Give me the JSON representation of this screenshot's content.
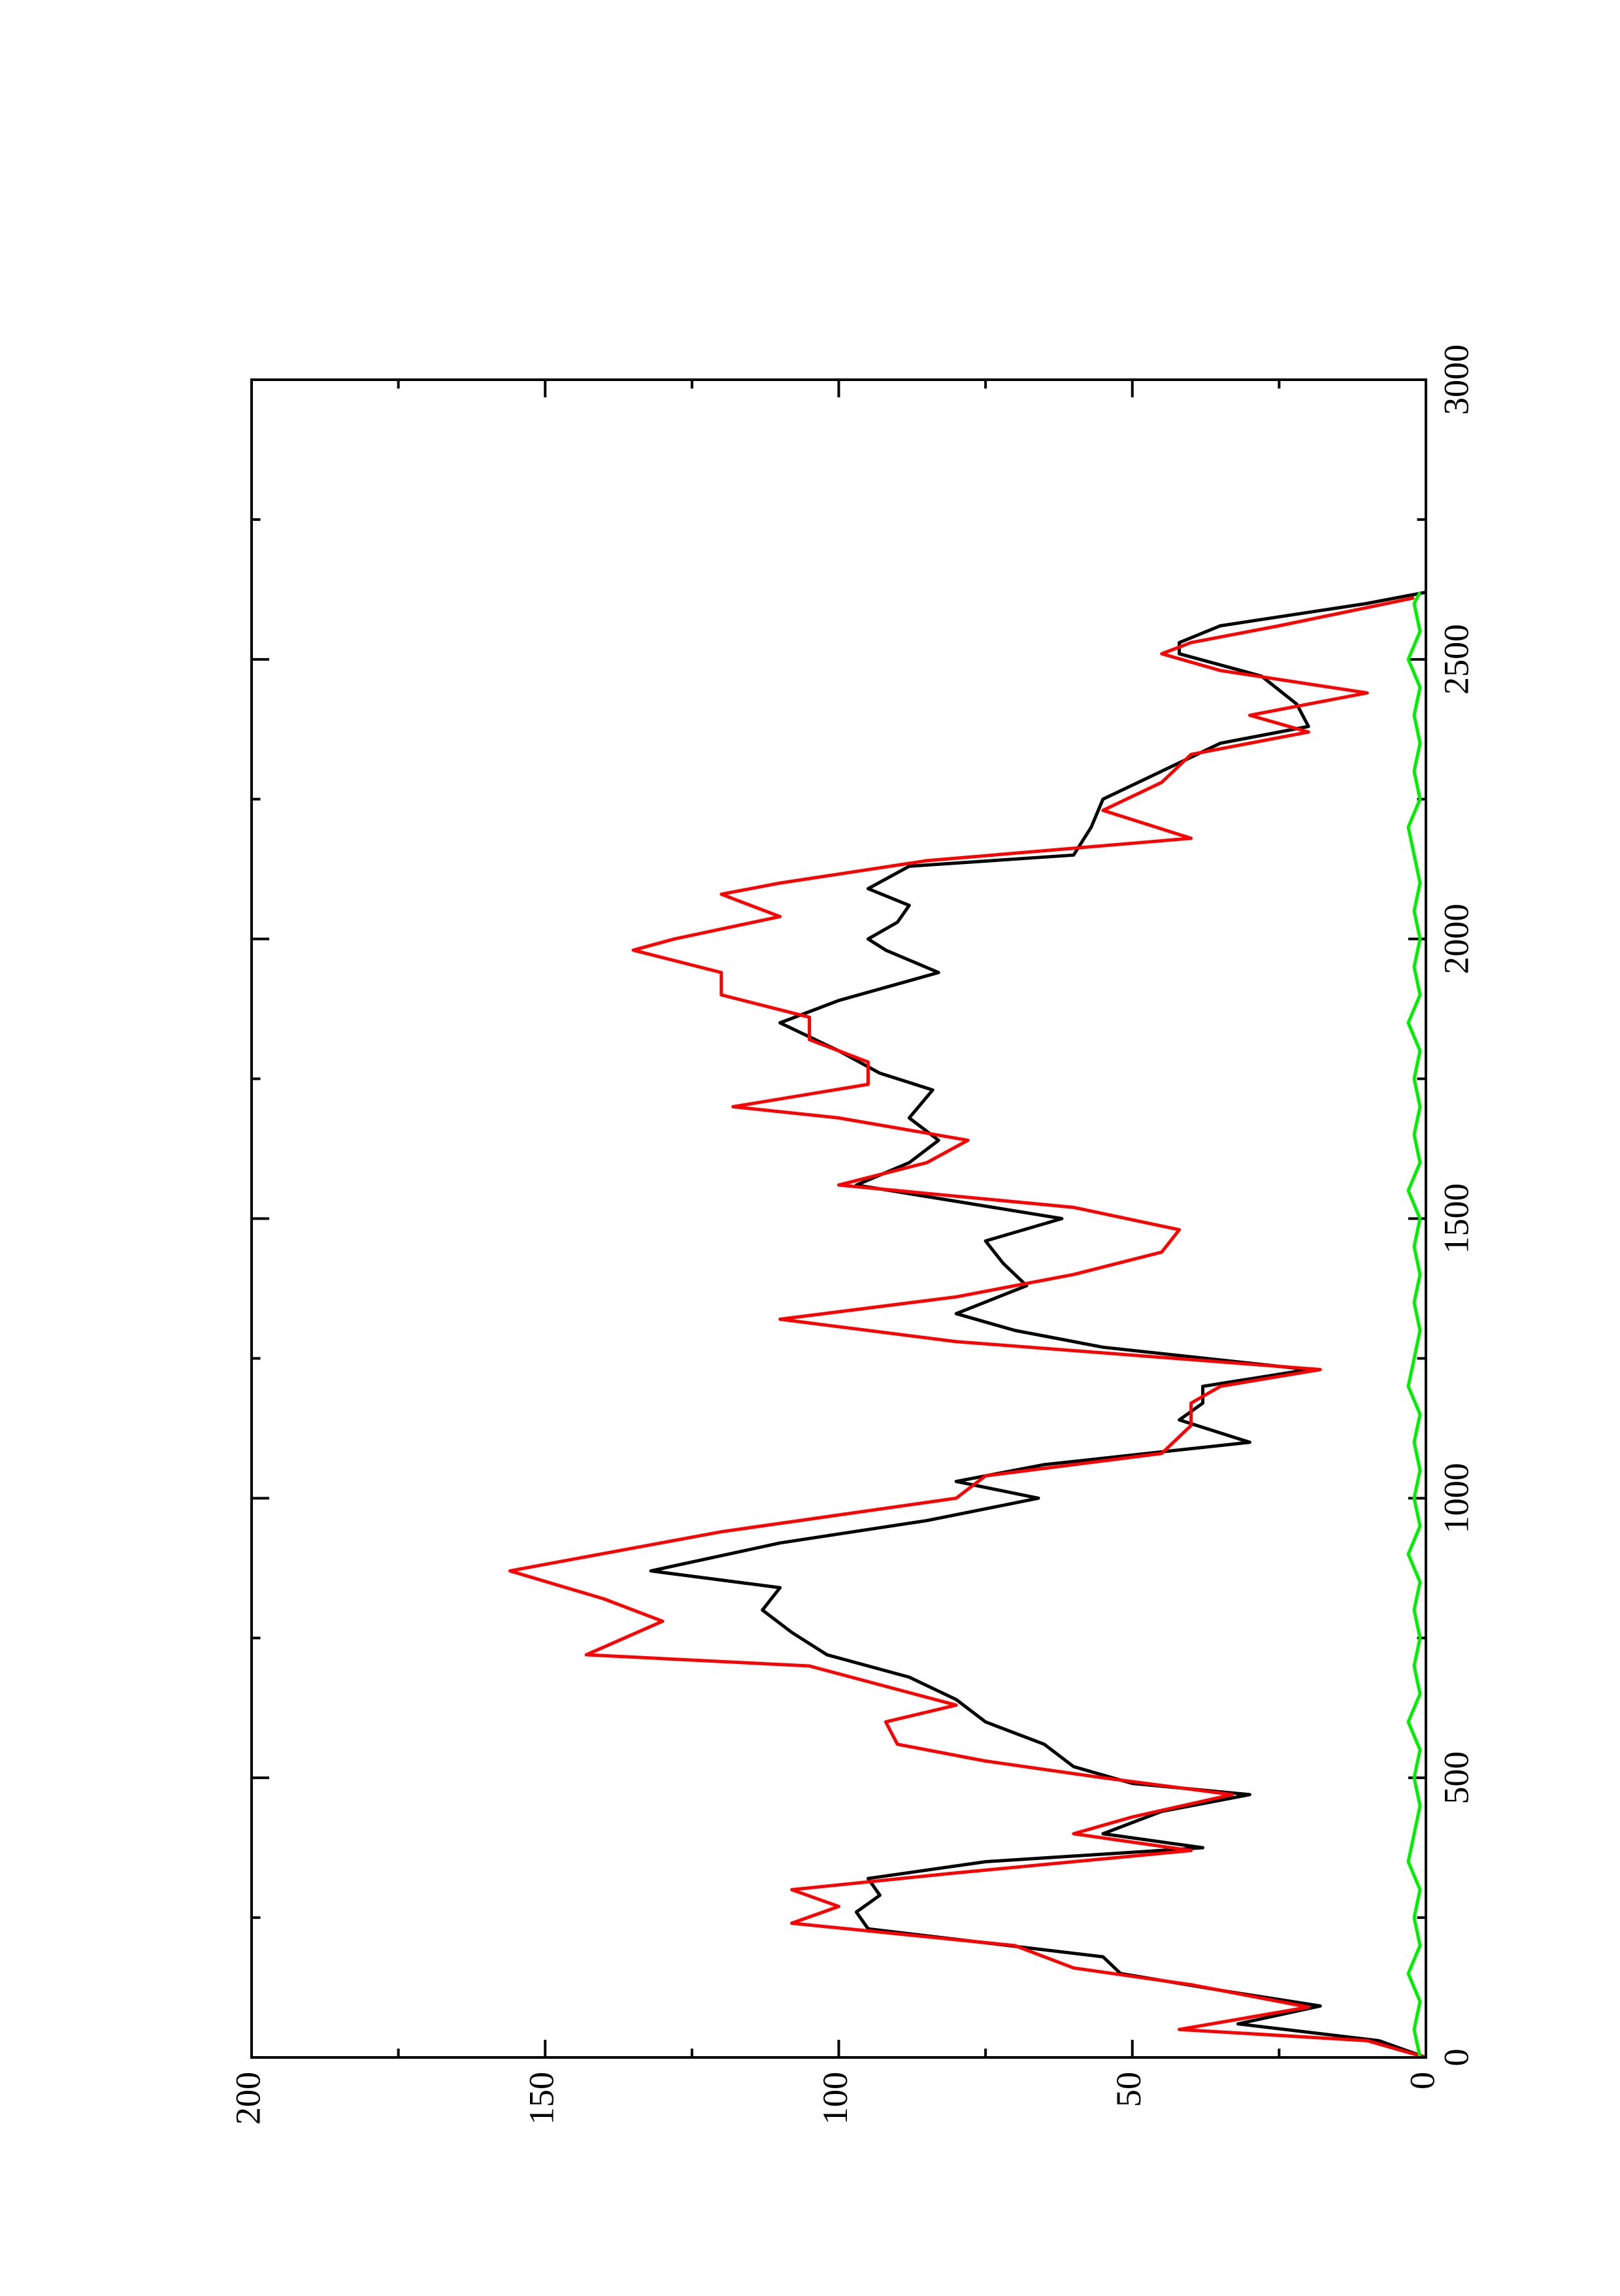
{
  "chart_data": {
    "type": "line",
    "xlim": [
      0,
      3000
    ],
    "xticks": [
      0,
      500,
      1000,
      1500,
      2000,
      2500,
      3000
    ],
    "xminor_ticks": [
      250,
      750,
      1250,
      1750,
      2250,
      2750
    ],
    "ylim": [
      0,
      200
    ],
    "yticks": [
      0,
      50,
      100,
      150,
      200
    ],
    "yminor_ticks": [
      25,
      75,
      125,
      175
    ],
    "series": [
      {
        "color": "#000000",
        "x": [
          0,
          30,
          60,
          92,
          120,
          150,
          180,
          230,
          260,
          290,
          320,
          350,
          375,
          400,
          440,
          470,
          490,
          520,
          560,
          600,
          640,
          680,
          720,
          760,
          800,
          840,
          870,
          920,
          960,
          1000,
          1030,
          1060,
          1100,
          1140,
          1170,
          1200,
          1230,
          1270,
          1300,
          1330,
          1380,
          1420,
          1460,
          1500,
          1560,
          1600,
          1640,
          1680,
          1730,
          1760,
          1800,
          1850,
          1890,
          1940,
          1980,
          2000,
          2030,
          2060,
          2090,
          2130,
          2150,
          2200,
          2250,
          2300,
          2350,
          2380,
          2420,
          2470,
          2510,
          2530,
          2560,
          2600,
          2620
        ],
        "values": [
          0,
          8,
          32,
          18,
          35,
          52,
          55,
          95,
          97,
          93,
          95,
          75,
          38,
          55,
          45,
          30,
          50,
          60,
          65,
          75,
          80,
          88,
          102,
          108,
          113,
          110,
          132,
          110,
          85,
          66,
          80,
          65,
          30,
          42,
          38,
          38,
          20,
          55,
          70,
          80,
          68,
          72,
          75,
          62,
          97,
          88,
          83,
          88,
          84,
          93,
          100,
          110,
          100,
          83,
          92,
          95,
          90,
          88,
          95,
          88,
          60,
          57,
          55,
          45,
          35,
          20,
          22,
          28,
          42,
          42,
          35,
          10,
          0
        ]
      },
      {
        "color": "#ff0000",
        "x": [
          0,
          30,
          50,
          90,
          130,
          160,
          200,
          240,
          270,
          300,
          330,
          370,
          400,
          430,
          470,
          500,
          530,
          560,
          600,
          630,
          700,
          720,
          780,
          820,
          870,
          940,
          970,
          1000,
          1040,
          1080,
          1130,
          1170,
          1200,
          1230,
          1280,
          1320,
          1360,
          1400,
          1440,
          1480,
          1520,
          1560,
          1600,
          1640,
          1680,
          1700,
          1740,
          1780,
          1820,
          1860,
          1900,
          1940,
          1980,
          2000,
          2040,
          2080,
          2100,
          2140,
          2180,
          2230,
          2280,
          2330,
          2370,
          2400,
          2440,
          2480,
          2510,
          2530,
          2560,
          2610
        ],
        "values": [
          0,
          10,
          42,
          20,
          40,
          60,
          70,
          108,
          100,
          108,
          80,
          40,
          60,
          50,
          33,
          55,
          75,
          90,
          92,
          80,
          105,
          143,
          130,
          140,
          156,
          120,
          100,
          80,
          75,
          45,
          40,
          40,
          35,
          18,
          80,
          110,
          80,
          60,
          45,
          42,
          60,
          100,
          85,
          78,
          100,
          118,
          95,
          95,
          105,
          105,
          120,
          120,
          135,
          128,
          110,
          120,
          110,
          85,
          40,
          55,
          45,
          40,
          20,
          30,
          10,
          35,
          45,
          40,
          25,
          2
        ]
      },
      {
        "color": "#00ee00",
        "x": [
          0,
          50,
          100,
          150,
          200,
          250,
          300,
          350,
          400,
          450,
          500,
          550,
          600,
          650,
          700,
          750,
          800,
          850,
          900,
          950,
          1000,
          1050,
          1100,
          1150,
          1200,
          1250,
          1300,
          1350,
          1400,
          1450,
          1500,
          1550,
          1600,
          1650,
          1700,
          1750,
          1800,
          1850,
          1900,
          1950,
          2000,
          2050,
          2100,
          2150,
          2200,
          2250,
          2300,
          2350,
          2400,
          2450,
          2500,
          2550,
          2600,
          2620
        ],
        "values": [
          1,
          2,
          1,
          3,
          1,
          2,
          1,
          3,
          2,
          1,
          2,
          1,
          3,
          1,
          2,
          1,
          2,
          1,
          3,
          1,
          2,
          1,
          2,
          1,
          3,
          2,
          1,
          2,
          1,
          2,
          1,
          3,
          1,
          2,
          1,
          2,
          1,
          3,
          1,
          2,
          1,
          2,
          1,
          2,
          3,
          1,
          2,
          1,
          2,
          1,
          3,
          1,
          2,
          1
        ]
      }
    ]
  }
}
